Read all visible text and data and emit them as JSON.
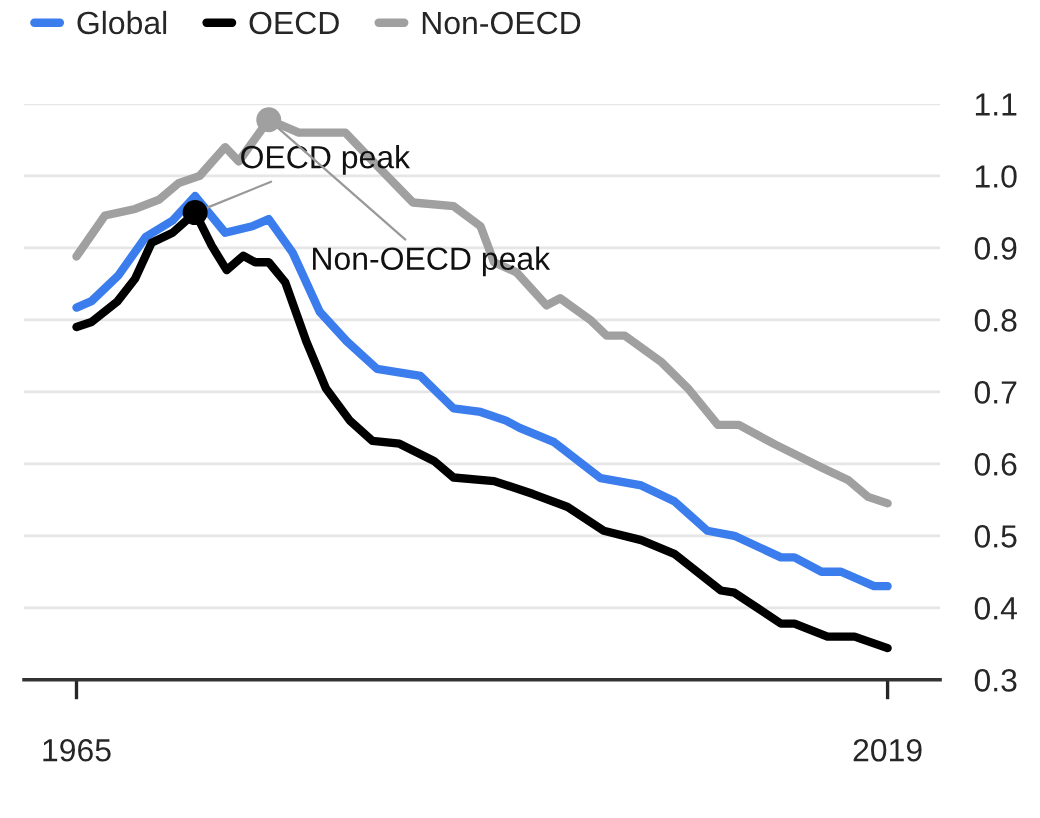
{
  "chart_data": {
    "type": "line",
    "legend": "top left",
    "grid": "y",
    "xlim": [
      1961.5,
      2022.5
    ],
    "xticks": [
      1965,
      2019
    ],
    "ylim": [
      0.3,
      1.1
    ],
    "yticks": [
      0.3,
      {
        "value": 0.4,
        "label": "0.4"
      },
      {
        "value": 0.5,
        "label": "0.5"
      },
      {
        "value": 0.6,
        "label": "0.6"
      },
      {
        "value": 0.7,
        "label": "0.7"
      },
      {
        "value": 0.8,
        "label": "0.8"
      },
      {
        "value": 0.9,
        "label": "0.9"
      },
      {
        "value": 1.0,
        "label": "1.0"
      },
      1.1
    ],
    "series": [
      {
        "name": "Global",
        "color": "#3b7ded",
        "x": [
          1965,
          1966,
          1967.8,
          1969.6,
          1971.4,
          1972.9,
          1974.9,
          1976.7,
          1977.8,
          1979.4,
          1981.2,
          1983,
          1985,
          1987.9,
          1990.1,
          1991.9,
          1993.6,
          1994.5,
          1996.8,
          1999.9,
          2002.6,
          2004.8,
          2007,
          2008.8,
          2011.9,
          2012.8,
          2014.6,
          2015.9,
          2018.1,
          2019
        ],
        "values": [
          0.817,
          0.826,
          0.862,
          0.915,
          0.938,
          0.972,
          0.921,
          0.93,
          0.94,
          0.893,
          0.811,
          0.77,
          0.732,
          0.722,
          0.677,
          0.672,
          0.66,
          0.65,
          0.63,
          0.58,
          0.57,
          0.548,
          0.507,
          0.5,
          0.47,
          0.47,
          0.45,
          0.45,
          0.43,
          0.43
        ]
      },
      {
        "name": "OECD",
        "color": "#000000",
        "x": [
          1965,
          1966,
          1967.7,
          1968.9,
          1970,
          1971.4,
          1972.9,
          1974,
          1975,
          1976.1,
          1976.9,
          1977.8,
          1978.9,
          1980.3,
          1981.6,
          1983.2,
          1984.7,
          1986.5,
          1988.8,
          1990.1,
          1992.8,
          1995.4,
          1997.7,
          2000.1,
          2002.6,
          2004.8,
          2007.9,
          2008.8,
          2011.9,
          2012.8,
          2015,
          2016.8,
          2019
        ],
        "values": [
          0.79,
          0.797,
          0.825,
          0.857,
          0.907,
          0.921,
          0.949,
          0.903,
          0.869,
          0.889,
          0.88,
          0.88,
          0.852,
          0.77,
          0.705,
          0.66,
          0.632,
          0.628,
          0.604,
          0.581,
          0.576,
          0.558,
          0.54,
          0.507,
          0.494,
          0.475,
          0.424,
          0.421,
          0.378,
          0.378,
          0.36,
          0.36,
          0.344
        ]
      },
      {
        "name": "Non-OECD",
        "color": "#a0a0a0",
        "x": [
          1965,
          1966.9,
          1968.9,
          1970.5,
          1971.8,
          1973.2,
          1974.9,
          1975.8,
          1977.8,
          1979.8,
          1982.9,
          1985.2,
          1987.4,
          1990.1,
          1991.9,
          1992.8,
          1994.3,
          1996.3,
          1997.2,
          1999.2,
          2000.3,
          2001.5,
          2003.9,
          2005.7,
          2007.7,
          2009.1,
          2011.5,
          2014.6,
          2016.4,
          2017.7,
          2019
        ],
        "values": [
          0.888,
          0.945,
          0.954,
          0.967,
          0.99,
          1.0,
          1.04,
          1.02,
          1.078,
          1.06,
          1.06,
          1.01,
          0.963,
          0.958,
          0.93,
          0.88,
          0.866,
          0.82,
          0.83,
          0.8,
          0.778,
          0.778,
          0.742,
          0.705,
          0.654,
          0.654,
          0.627,
          0.595,
          0.577,
          0.554,
          0.545
        ]
      }
    ],
    "annotations": [
      {
        "text": "OECD peak",
        "x": 1972.9,
        "y": 0.949
      },
      {
        "text": "Non-OECD peak",
        "x": 1977.8,
        "y": 1.078
      }
    ]
  }
}
